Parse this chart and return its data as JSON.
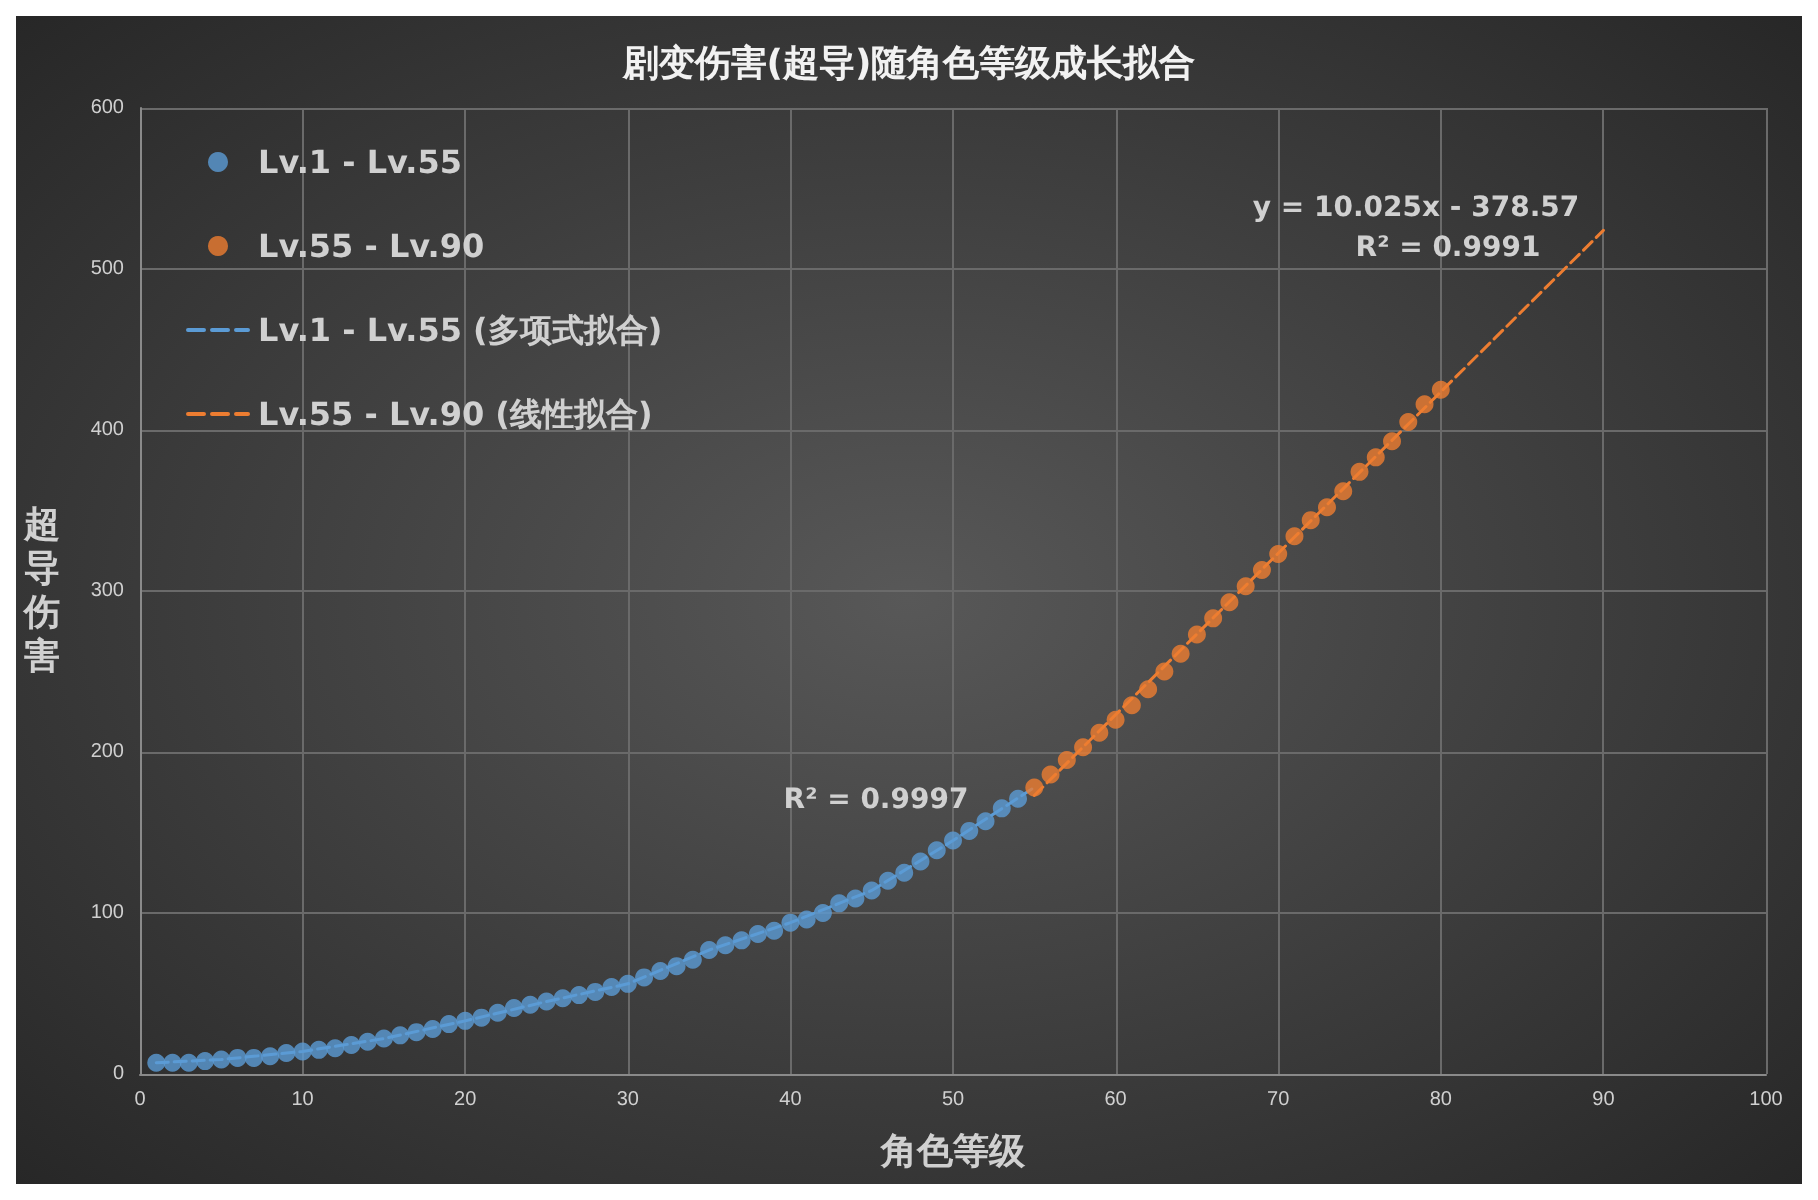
{
  "chart_data": {
    "type": "scatter",
    "title": "剧变伤害(超导)随角色等级成长拟合",
    "xlabel": "角色等级",
    "ylabel": "超导伤害",
    "xlim": [
      0,
      100
    ],
    "xticks": [
      0,
      10,
      20,
      30,
      40,
      50,
      60,
      70,
      80,
      90,
      100
    ],
    "ylim": [
      0,
      600
    ],
    "yticks": [
      0,
      100,
      200,
      300,
      400,
      500,
      600
    ],
    "grid": true,
    "legend": "top left",
    "marker": "circle",
    "series": [
      {
        "name": "Lv.1 - Lv.55",
        "color": "#5b9bd5",
        "x": [
          1,
          2,
          3,
          4,
          5,
          6,
          7,
          8,
          9,
          10,
          11,
          12,
          13,
          14,
          15,
          16,
          17,
          18,
          19,
          20,
          21,
          22,
          23,
          24,
          25,
          26,
          27,
          28,
          29,
          30,
          31,
          32,
          33,
          34,
          35,
          36,
          37,
          38,
          39,
          40,
          41,
          42,
          43,
          44,
          45,
          46,
          47,
          48,
          49,
          50,
          51,
          52,
          53,
          54
        ],
        "values": [
          7,
          7,
          7,
          8,
          9,
          10,
          10,
          11,
          13,
          14,
          15,
          16,
          18,
          20,
          22,
          24,
          26,
          28,
          31,
          33,
          35,
          38,
          41,
          43,
          45,
          47,
          49,
          51,
          54,
          56,
          60,
          64,
          67,
          71,
          77,
          80,
          83,
          87,
          89,
          94,
          96,
          100,
          106,
          109,
          114,
          120,
          125,
          132,
          139,
          145,
          151,
          157,
          165,
          171
        ]
      },
      {
        "name": "Lv.55 - Lv.90",
        "color": "#ed7d31",
        "x": [
          55,
          56,
          57,
          58,
          59,
          60,
          61,
          62,
          63,
          64,
          65,
          66,
          67,
          68,
          69,
          70,
          71,
          72,
          73,
          74,
          75,
          76,
          77,
          78,
          79,
          80
        ],
        "values": [
          178,
          186,
          195,
          203,
          212,
          220,
          229,
          239,
          250,
          261,
          273,
          283,
          293,
          303,
          313,
          323,
          334,
          344,
          352,
          362,
          374,
          383,
          393,
          405,
          416,
          425
        ]
      },
      {
        "name": "Lv.1 - Lv.55 (多项式拟合)",
        "type": "line",
        "color": "#5b9bd5",
        "line_style": "dashed",
        "marker": "none",
        "x": [
          1,
          5,
          10,
          15,
          20,
          25,
          30,
          35,
          40,
          45,
          50,
          55
        ],
        "values": [
          7,
          9,
          14,
          22,
          33,
          45,
          56,
          77,
          94,
          114,
          145,
          178
        ]
      },
      {
        "name": "Lv.55 - Lv.90 (线性拟合)",
        "type": "line",
        "color": "#ed7d31",
        "line_style": "dashed",
        "marker": "none",
        "x": [
          55,
          90
        ],
        "values": [
          173,
          524
        ]
      }
    ],
    "annotations": [
      "R² = 0.9997",
      "y = 10.025x - 378.57",
      "R² = 0.9991"
    ]
  }
}
